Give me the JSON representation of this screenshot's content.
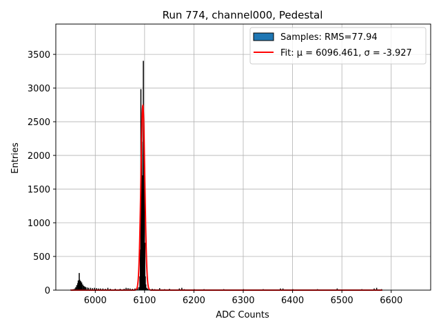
{
  "chart_data": {
    "type": "bar",
    "title": "Run 774, channel000, Pedestal",
    "xlabel": "ADC Counts",
    "ylabel": "Entries",
    "xlim": [
      5920,
      6680
    ],
    "ylim": [
      0,
      3950
    ],
    "x_ticks": [
      6000,
      6100,
      6200,
      6300,
      6400,
      6500,
      6600
    ],
    "y_ticks": [
      0,
      500,
      1000,
      1500,
      2000,
      2500,
      3000,
      3500
    ],
    "grid": true,
    "legend_position": "top-right",
    "legend": [
      {
        "label": "Samples: RMS=77.94",
        "kind": "patch",
        "color": "#1f77b4"
      },
      {
        "label": "Fit: μ = 6096.461, σ = -3.927",
        "kind": "line",
        "color": "#ff0000"
      }
    ],
    "series": [
      {
        "name": "Samples: RMS=77.94",
        "type": "histogram",
        "bin_width": 1,
        "x": [
          5950,
          5955,
          5958,
          5960,
          5962,
          5964,
          5965,
          5966,
          5967,
          5968,
          5969,
          5970,
          5971,
          5972,
          5974,
          5976,
          5978,
          5980,
          5983,
          5986,
          5990,
          5994,
          5998,
          6002,
          6006,
          6010,
          6015,
          6020,
          6025,
          6030,
          6040,
          6050,
          6058,
          6062,
          6066,
          6070,
          6075,
          6080,
          6085,
          6088,
          6090,
          6091,
          6092,
          6093,
          6094,
          6095,
          6096,
          6097,
          6098,
          6099,
          6100,
          6101,
          6102,
          6104,
          6106,
          6110,
          6115,
          6120,
          6130,
          6140,
          6150,
          6170,
          6175,
          6180,
          6200,
          6220,
          6260,
          6300,
          6340,
          6375,
          6380,
          6400,
          6450,
          6490,
          6540,
          6565,
          6570,
          6580
        ],
        "y": [
          5,
          10,
          20,
          40,
          70,
          100,
          140,
          120,
          250,
          150,
          110,
          130,
          100,
          110,
          80,
          60,
          50,
          40,
          35,
          30,
          30,
          25,
          30,
          25,
          20,
          20,
          20,
          15,
          30,
          15,
          15,
          15,
          15,
          30,
          25,
          20,
          15,
          20,
          30,
          40,
          200,
          600,
          2980,
          1800,
          2200,
          1700,
          1500,
          3400,
          2100,
          1600,
          700,
          200,
          80,
          30,
          15,
          10,
          15,
          10,
          25,
          10,
          15,
          20,
          30,
          10,
          10,
          10,
          10,
          10,
          10,
          20,
          20,
          10,
          10,
          20,
          10,
          20,
          30,
          10
        ]
      },
      {
        "name": "Fit: μ = 6096.461, σ = -3.927",
        "type": "gaussian_fit",
        "mu": 6096.461,
        "sigma": -3.927,
        "amplitude": 2740,
        "range": [
          5950,
          6582
        ]
      }
    ]
  }
}
